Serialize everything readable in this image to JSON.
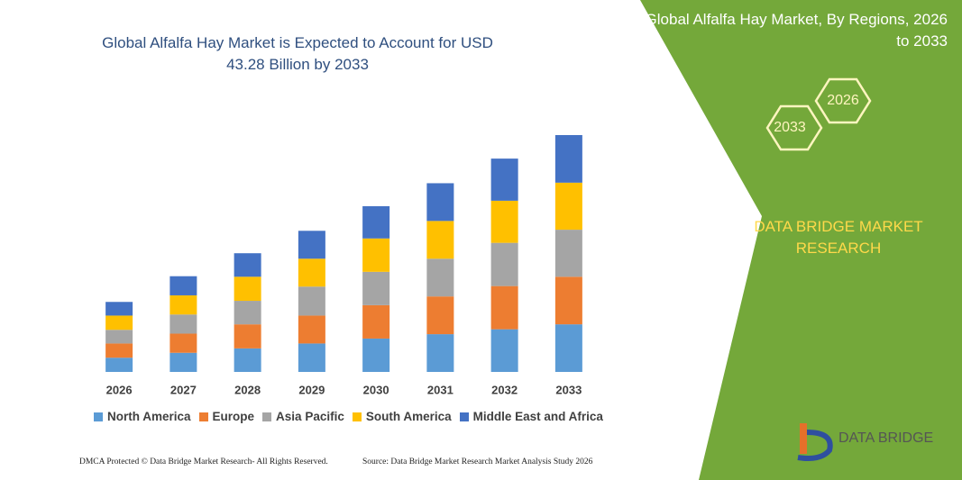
{
  "chart_data": {
    "type": "stacked_bar",
    "title": "Global Alfalfa Hay Market is Expected to Account for USD 43.28 Billion by 2033",
    "categories": [
      "2026",
      "2027",
      "2028",
      "2029",
      "2030",
      "2031",
      "2032",
      "2033"
    ],
    "series": [
      {
        "name": "North America",
        "color": "#5b9bd5",
        "values": [
          2.6,
          3.5,
          4.3,
          5.2,
          6.1,
          6.9,
          7.8,
          8.7
        ]
      },
      {
        "name": "Europe",
        "color": "#ed7d31",
        "values": [
          2.6,
          3.5,
          4.4,
          5.1,
          6.1,
          6.9,
          7.9,
          8.7
        ]
      },
      {
        "name": "Asia Pacific",
        "color": "#a5a5a5",
        "values": [
          2.5,
          3.5,
          4.3,
          5.3,
          6.1,
          6.9,
          7.9,
          8.6
        ]
      },
      {
        "name": "South America",
        "color": "#ffc000",
        "values": [
          2.6,
          3.5,
          4.4,
          5.1,
          6.1,
          6.9,
          7.7,
          8.6
        ]
      },
      {
        "name": "Middle East and Africa",
        "color": "#4472c4",
        "values": [
          2.5,
          3.5,
          4.3,
          5.1,
          5.9,
          6.9,
          7.7,
          8.7
        ]
      }
    ]
  },
  "side_panel": {
    "title": "Global Alfalfa Hay Market, By Regions, 2026 to 2033",
    "hexagons": [
      "2026",
      "2033"
    ],
    "brand": "DATA BRIDGE MARKET RESEARCH"
  },
  "logo": {
    "text": "DATA BRIDGE"
  },
  "footer": {
    "left": "DMCA Protected © Data Bridge Market Research- All Rights Reserved.",
    "right": "Source: Data Bridge Market Research  Market Analysis Study 2026"
  }
}
